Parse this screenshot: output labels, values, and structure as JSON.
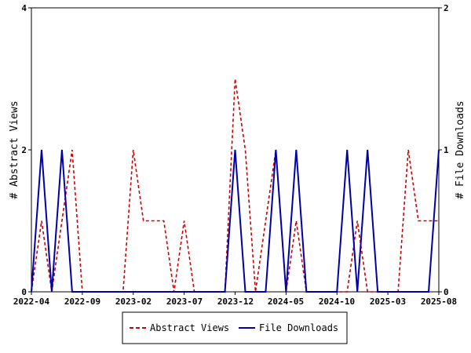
{
  "chart_data": {
    "type": "line",
    "x_labels": [
      "2022-04",
      "2022-05",
      "2022-06",
      "2022-07",
      "2022-08",
      "2022-09",
      "2022-10",
      "2022-11",
      "2022-12",
      "2023-01",
      "2023-02",
      "2023-03",
      "2023-04",
      "2023-05",
      "2023-06",
      "2023-07",
      "2023-08",
      "2023-09",
      "2023-10",
      "2023-11",
      "2023-12",
      "2024-01",
      "2024-02",
      "2024-03",
      "2024-04",
      "2024-05",
      "2024-06",
      "2024-07",
      "2024-08",
      "2024-09",
      "2024-10",
      "2024-11",
      "2024-12",
      "2025-01",
      "2025-02",
      "2025-03",
      "2025-04",
      "2025-05",
      "2025-06",
      "2025-07",
      "2025-08"
    ],
    "tick_labels": [
      "2022-04",
      "2022-09",
      "2023-02",
      "2023-07",
      "2023-12",
      "2024-05",
      "2024-10",
      "2025-03",
      "2025-08"
    ],
    "ylabel_left": "# Abstract Views",
    "ylabel_right": "# File Downloads",
    "ylim_left": [
      0,
      4
    ],
    "ylim_right": [
      0,
      2
    ],
    "yticks_left": [
      "0",
      "2",
      "4"
    ],
    "yticks_right": [
      "0",
      "1",
      "2"
    ],
    "legend_position": "bottom-center",
    "series": [
      {
        "name": "Abstract Views",
        "axis": "left",
        "color": "#cc0000",
        "style": "dashed",
        "values": [
          0,
          1,
          0,
          1,
          2,
          0,
          0,
          0,
          0,
          0,
          2,
          1,
          1,
          1,
          0,
          1,
          0,
          0,
          0,
          0,
          3,
          2,
          0,
          1,
          2,
          0,
          1,
          0,
          0,
          0,
          0,
          0,
          1,
          0,
          0,
          0,
          0,
          2,
          1,
          1,
          1
        ]
      },
      {
        "name": "File Downloads",
        "axis": "right",
        "color": "#0000aa",
        "style": "solid",
        "values": [
          0,
          1,
          0,
          1,
          0,
          0,
          0,
          0,
          0,
          0,
          0,
          0,
          0,
          0,
          0,
          0,
          0,
          0,
          0,
          0,
          1,
          0,
          0,
          0,
          1,
          0,
          1,
          0,
          0,
          0,
          0,
          1,
          0,
          1,
          0,
          0,
          0,
          0,
          0,
          0,
          1
        ]
      }
    ]
  }
}
